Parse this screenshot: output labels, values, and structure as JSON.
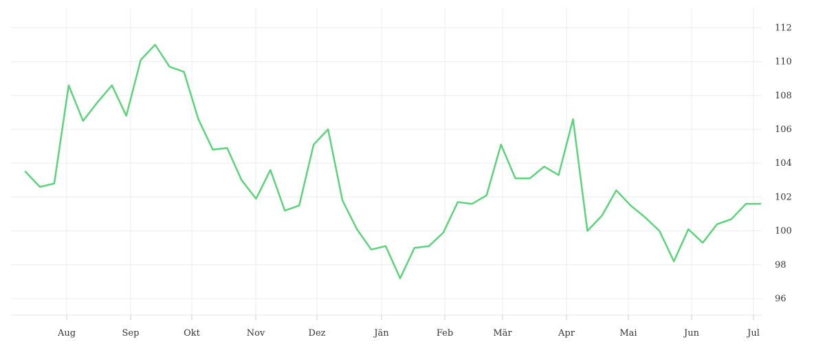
{
  "chart_data": {
    "type": "line",
    "title": "",
    "xlabel": "",
    "ylabel": "",
    "x_tick_labels": [
      "Aug",
      "Sep",
      "Okt",
      "Nov",
      "Dez",
      "Jän",
      "Feb",
      "Mär",
      "Apr",
      "Mai",
      "Jun",
      "Jul"
    ],
    "y_ticks": [
      96,
      98,
      100,
      102,
      104,
      106,
      108,
      110,
      112
    ],
    "ylim": [
      95,
      113
    ],
    "grid": true,
    "y_axis_side": "right",
    "series": [
      {
        "color": "#5ad47a",
        "values": [
          103.5,
          102.6,
          102.8,
          108.6,
          106.5,
          107.6,
          108.6,
          106.8,
          110.1,
          111.0,
          109.7,
          109.4,
          106.6,
          104.8,
          104.9,
          103.0,
          101.9,
          103.6,
          101.2,
          101.5,
          105.1,
          106.0,
          101.8,
          100.1,
          98.9,
          99.1,
          97.2,
          99.0,
          99.1,
          99.9,
          101.7,
          101.6,
          102.1,
          105.1,
          103.1,
          103.1,
          103.8,
          103.3,
          106.6,
          100.0,
          100.9,
          102.4,
          101.5,
          100.8,
          100.0,
          98.2,
          100.1,
          99.3,
          100.4,
          100.7,
          101.6,
          101.6
        ]
      }
    ]
  }
}
